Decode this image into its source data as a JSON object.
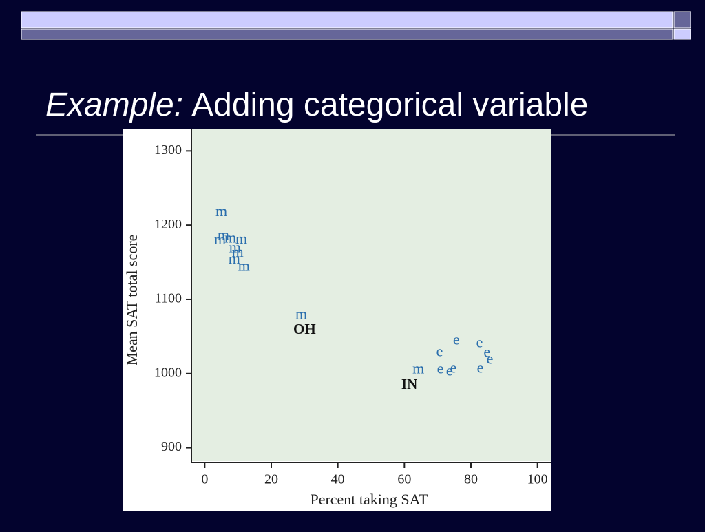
{
  "slide": {
    "title_italic": "Example:",
    "title_rest": "Adding categorical variable"
  },
  "chart_data": {
    "type": "scatter",
    "xlabel": "Percent taking SAT",
    "ylabel": "Mean SAT total score",
    "xlim": [
      -4,
      104
    ],
    "ylim": [
      882,
      1330
    ],
    "xticks": [
      0,
      20,
      40,
      60,
      80,
      100
    ],
    "yticks": [
      900,
      1000,
      1100,
      1200,
      1300
    ],
    "color": "#2a6ead",
    "points": {
      "x": [
        5,
        5.6,
        4.6,
        7.7,
        11,
        9.1,
        9.9,
        8.9,
        11.8,
        29,
        64.2,
        75.6,
        70.6,
        82.6,
        84.8,
        85.7,
        70.8,
        74.7,
        73.5,
        82.8
      ],
      "y": [
        1217,
        1185,
        1179,
        1181,
        1180,
        1168,
        1162,
        1153,
        1143,
        1078,
        1005,
        1044,
        1028,
        1040,
        1027,
        1018,
        1005,
        1006,
        1002,
        1006
      ],
      "labels": [
        "m",
        "m",
        "m",
        "m",
        "m",
        "m",
        "m",
        "m",
        "m",
        "m",
        "m",
        "e",
        "e",
        "e",
        "e",
        "e",
        "e",
        "e",
        "e",
        "e"
      ]
    },
    "annotations": [
      {
        "text": "OH",
        "x": 30,
        "y": 1058
      },
      {
        "text": "IN",
        "x": 61.5,
        "y": 984
      }
    ]
  }
}
